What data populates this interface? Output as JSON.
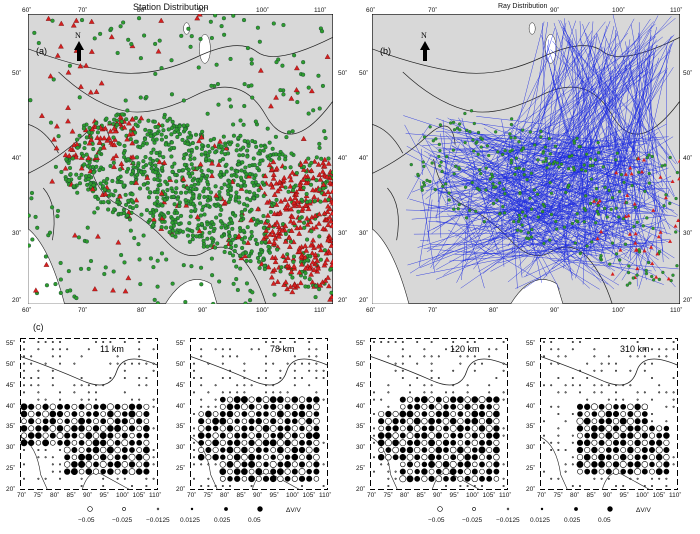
{
  "panel_a": {
    "title": "Station Distribution",
    "label": "(a)",
    "north": "N",
    "lon_ticks": [
      "60˚",
      "70˚",
      "80˚",
      "90˚",
      "100˚",
      "110˚"
    ],
    "lat_ticks": [
      "50˚",
      "40˚",
      "30˚",
      "20˚"
    ],
    "land_color": "#d8d8d8",
    "station_color": "#2e9b2e",
    "event_color": "#d42020"
  },
  "panel_b": {
    "title": "Ray Distribution",
    "label": "(b)",
    "north": "N",
    "lon_ticks": [
      "60˚",
      "70˚",
      "80˚",
      "90˚",
      "100˚",
      "110˚"
    ],
    "lat_ticks": [
      "50˚",
      "40˚",
      "30˚",
      "20˚"
    ],
    "ray_color": "#1f2de0"
  },
  "panel_c": {
    "label": "(c)",
    "depth_panels": [
      {
        "depth": "11 km"
      },
      {
        "depth": "78 km"
      },
      {
        "depth": "120 km"
      },
      {
        "depth": "310 km"
      }
    ],
    "lon_ticks": [
      "70˚",
      "75˚",
      "80˚",
      "85˚",
      "90˚",
      "95˚",
      "100˚",
      "105˚",
      "110˚"
    ],
    "lat_ticks": [
      "55˚",
      "50˚",
      "45˚",
      "40˚",
      "35˚",
      "30˚",
      "25˚",
      "20˚"
    ],
    "legend": {
      "title": "ΔV/V",
      "values": [
        "−0.05",
        "−0.025",
        "−0.0125",
        "0.0125",
        "0.025",
        "0.05"
      ]
    }
  }
}
